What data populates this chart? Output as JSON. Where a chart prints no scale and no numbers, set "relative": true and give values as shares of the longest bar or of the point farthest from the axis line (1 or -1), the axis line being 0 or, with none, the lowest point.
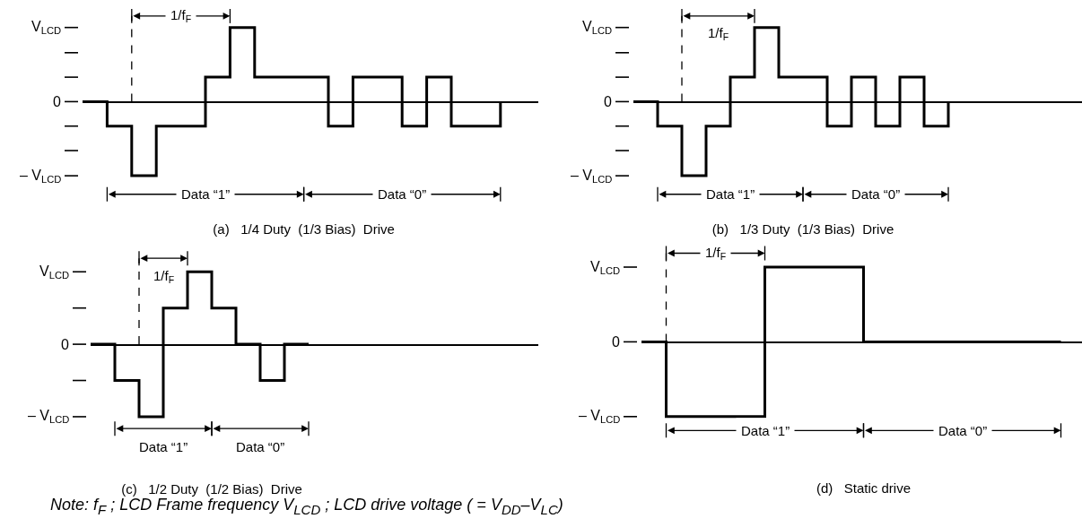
{
  "chart_data": [
    {
      "type": "step",
      "title": "(a)   1/4 Duty  (1/3 Bias)  Drive",
      "relative": true,
      "line_style": "solid",
      "categories": [
        null,
        null,
        null,
        null,
        null,
        null,
        null,
        null,
        null,
        null,
        null,
        null,
        null,
        null,
        null,
        null,
        null,
        null
      ],
      "series": [
        {
          "color": "#000000",
          "values": [
            0,
            -0.33,
            -1,
            -0.33,
            -0.33,
            0.33,
            1,
            0.33,
            0.33,
            0.33,
            -0.33,
            0.33,
            0.33,
            -0.33,
            0.33,
            -0.33,
            -0.33,
            0
          ]
        }
      ],
      "annotations": [
        "V$_{LCD}$",
        "0",
        "– V$_{LCD}$",
        "1/f$_{F}$",
        "Data “1”",
        "Data “0”"
      ]
    },
    {
      "type": "step",
      "title": "(b)   1/3 Duty  (1/3 Bias)  Drive",
      "relative": true,
      "line_style": "solid",
      "categories": [
        null,
        null,
        null,
        null,
        null,
        null,
        null,
        null,
        null,
        null,
        null,
        null,
        null,
        null
      ],
      "series": [
        {
          "color": "#000000",
          "values": [
            0,
            -0.33,
            -1,
            -0.33,
            0.33,
            1,
            0.33,
            0.33,
            -0.33,
            0.33,
            -0.33,
            0.33,
            -0.33,
            0
          ]
        }
      ],
      "annotations": [
        "V$_{LCD}$",
        "0",
        "– V$_{LCD}$",
        "1/f$_{F}$",
        "Data “1”",
        "Data “0”"
      ]
    },
    {
      "type": "step",
      "title": "(c)   1/2 Duty  (1/2 Bias)  Drive",
      "relative": true,
      "line_style": "solid",
      "categories": [
        null,
        null,
        null,
        null,
        null,
        null,
        null,
        null,
        null,
        null
      ],
      "series": [
        {
          "color": "#000000",
          "values": [
            0,
            -0.5,
            -1,
            0.5,
            1,
            0.5,
            0,
            -0.5,
            0,
            0
          ]
        }
      ],
      "annotations": [
        "V$_{LCD}$",
        "0",
        "– V$_{LCD}$",
        "1/f$_{F}$",
        "Data “1”",
        "Data “0”",
        "Note:   f$_{F}$ ; LCD Frame frequency   V$_{LCD}$ ; LCD drive voltage ( = V$_{DD}$–V$_{LC}$)"
      ]
    },
    {
      "type": "step",
      "title": "(d)   Static drive",
      "relative": true,
      "line_style": "solid",
      "categories": [
        null,
        null,
        null,
        null,
        null,
        null,
        null,
        null,
        null,
        null,
        null,
        null,
        null,
        null,
        null,
        null,
        null,
        null
      ],
      "series": [
        {
          "color": "#000000",
          "values": [
            0,
            -1,
            -1,
            -1,
            -1,
            1,
            1,
            1,
            1,
            0,
            0,
            0,
            0,
            0,
            0,
            0,
            0,
            0
          ]
        }
      ],
      "annotations": [
        "V$_{LCD}$",
        "0",
        "– V$_{LCD}$",
        "1/f$_{F}$",
        "Data “1”",
        "Data “0”"
      ]
    }
  ]
}
